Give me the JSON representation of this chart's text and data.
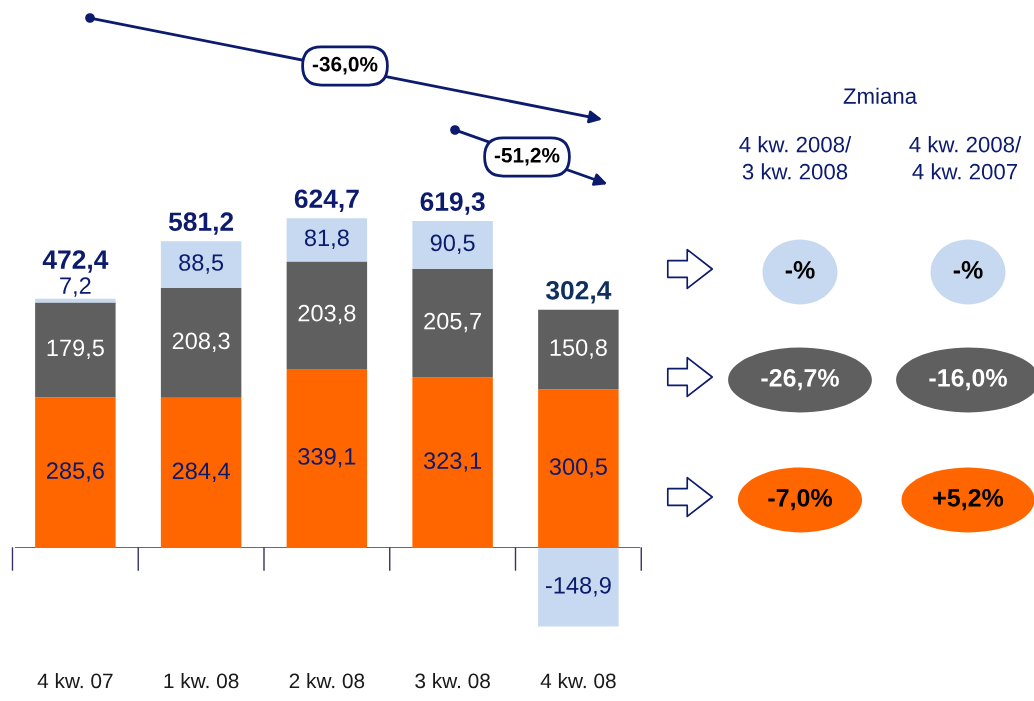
{
  "chart_data": {
    "type": "bar",
    "stacked": true,
    "categories": [
      "4 kw. 07",
      "1 kw. 08",
      "2 kw. 08",
      "3 kw. 08",
      "4 kw. 08"
    ],
    "series": [
      {
        "color": "#ff6600",
        "values": [
          285.6,
          284.4,
          339.1,
          323.1,
          300.5
        ],
        "value_labels": [
          "285,6",
          "284,4",
          "339,1",
          "323,1",
          "300,5"
        ]
      },
      {
        "color": "#5f5f5f",
        "values": [
          179.5,
          208.3,
          203.8,
          205.7,
          150.8
        ],
        "value_labels": [
          "179,5",
          "208,3",
          "203,8",
          "205,7",
          "150,8"
        ]
      },
      {
        "color": "#c6d9f0",
        "values": [
          7.2,
          88.5,
          81.8,
          90.5,
          -148.9
        ],
        "value_labels": [
          "7,2",
          "88,5",
          "81,8",
          "90,5",
          "-148,9"
        ]
      }
    ],
    "totals": [
      "472,4",
      "581,2",
      "624,7",
      "619,3",
      "302,4"
    ],
    "annotations": [
      "-36,0%",
      "-51,2%",
      "Zmiana",
      "4 kw. 2008/\n3 kw. 2008",
      "4 kw. 2008/\n4 kw. 2007",
      "-%",
      "-%",
      "-26,7%",
      "-16,0%",
      "-7,0%",
      "+5,2%"
    ],
    "ref_lines": [
      {
        "axis": "y",
        "value": 0,
        "color": "#333366"
      }
    ],
    "grid": false,
    "legend": false
  }
}
